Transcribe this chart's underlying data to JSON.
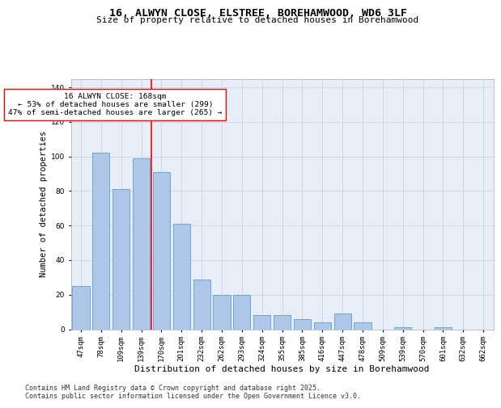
{
  "title": "16, ALWYN CLOSE, ELSTREE, BOREHAMWOOD, WD6 3LF",
  "subtitle": "Size of property relative to detached houses in Borehamwood",
  "xlabel": "Distribution of detached houses by size in Borehamwood",
  "ylabel": "Number of detached properties",
  "categories": [
    "47sqm",
    "78sqm",
    "109sqm",
    "139sqm",
    "170sqm",
    "201sqm",
    "232sqm",
    "262sqm",
    "293sqm",
    "324sqm",
    "355sqm",
    "385sqm",
    "416sqm",
    "447sqm",
    "478sqm",
    "509sqm",
    "539sqm",
    "570sqm",
    "601sqm",
    "632sqm",
    "662sqm"
  ],
  "values": [
    25,
    102,
    81,
    99,
    91,
    61,
    29,
    20,
    20,
    8,
    8,
    6,
    4,
    9,
    4,
    0,
    1,
    0,
    1,
    0,
    0
  ],
  "bar_color": "#aec6e8",
  "bar_edge_color": "#5a9fd4",
  "vline_color": "red",
  "vline_pos": 3.5,
  "annotation_text": "16 ALWYN CLOSE: 168sqm\n← 53% of detached houses are smaller (299)\n47% of semi-detached houses are larger (265) →",
  "annotation_box_color": "white",
  "annotation_box_edge_color": "red",
  "ylim": [
    0,
    145
  ],
  "yticks": [
    0,
    20,
    40,
    60,
    80,
    100,
    120,
    140
  ],
  "grid_color": "#d0d8e8",
  "bg_color": "#e8eef8",
  "footer": "Contains HM Land Registry data © Crown copyright and database right 2025.\nContains public sector information licensed under the Open Government Licence v3.0.",
  "title_fontsize": 9.5,
  "subtitle_fontsize": 8,
  "xlabel_fontsize": 8,
  "ylabel_fontsize": 7.5,
  "tick_fontsize": 6.5,
  "annotation_fontsize": 6.8,
  "footer_fontsize": 6.0
}
